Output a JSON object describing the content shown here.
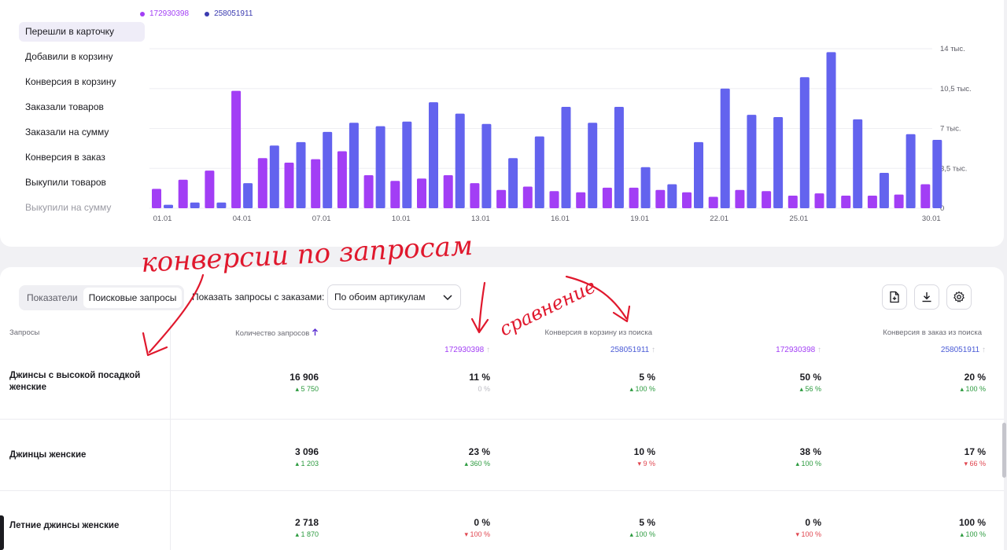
{
  "metrics": [
    {
      "label": "Перешли в карточку",
      "active": true
    },
    {
      "label": "Добавили в корзину"
    },
    {
      "label": "Конверсия в корзину"
    },
    {
      "label": "Заказали товаров"
    },
    {
      "label": "Заказали на сумму"
    },
    {
      "label": "Конверсия в заказ"
    },
    {
      "label": "Выкупили товаров"
    },
    {
      "label": "Выкупили на сумму",
      "faded": true
    }
  ],
  "legend": [
    {
      "label": "172930398",
      "color": "#a23ef5"
    },
    {
      "label": "258051911",
      "color": "#6363ee"
    }
  ],
  "chart_data": {
    "type": "bar",
    "categories": [
      "01.01",
      "02.01",
      "03.01",
      "04.01",
      "05.01",
      "06.01",
      "07.01",
      "08.01",
      "09.01",
      "10.01",
      "11.01",
      "12.01",
      "13.01",
      "14.01",
      "15.01",
      "16.01",
      "17.01",
      "18.01",
      "19.01",
      "20.01",
      "21.01",
      "22.01",
      "23.01",
      "24.01",
      "25.01",
      "26.01",
      "27.01",
      "28.01",
      "29.01",
      "30.01"
    ],
    "tick_labels": [
      "01.01",
      "04.01",
      "07.01",
      "10.01",
      "13.01",
      "16.01",
      "19.01",
      "22.01",
      "25.01",
      "30.01"
    ],
    "series": [
      {
        "name": "172930398",
        "color": "#a23ef5",
        "values": [
          1700,
          2500,
          3300,
          10300,
          4400,
          4000,
          4300,
          5000,
          2900,
          2400,
          2600,
          2900,
          2200,
          1600,
          1900,
          1500,
          1400,
          1800,
          1800,
          1600,
          1400,
          1000,
          1600,
          1500,
          1100,
          1300,
          1100,
          1100,
          1200,
          2100
        ]
      },
      {
        "name": "258051911",
        "color": "#6363ee",
        "values": [
          300,
          500,
          500,
          2200,
          5500,
          5800,
          6700,
          7500,
          7200,
          7600,
          9300,
          8300,
          7400,
          4400,
          6300,
          8900,
          7500,
          8900,
          3600,
          2100,
          5800,
          10500,
          8200,
          8000,
          11500,
          13700,
          7800,
          3100,
          6500,
          6000
        ]
      }
    ],
    "y_ticks": [
      "0",
      "3,5 тыс.",
      "7 тыс.",
      "10,5 тыс.",
      "14 тыс."
    ],
    "ylim": [
      0,
      14000
    ],
    "grid": true,
    "legend_position": "top-left"
  },
  "toolbar": {
    "tabs": [
      "Показатели",
      "Поисковые запросы"
    ],
    "active_tab": 1,
    "filter_label": "Показать запросы с заказами:",
    "select_value": "По обоим артикулам"
  },
  "table": {
    "col_query": "Запросы",
    "col_count": "Количество запросов",
    "col_cart": "Конверсия в корзину из поиска",
    "col_order": "Конверсия в заказ из поиска",
    "sub_headers": [
      {
        "label": "172930398",
        "color": "#a23ef5"
      },
      {
        "label": "258051911",
        "color": "#4a5bd6"
      },
      {
        "label": "172930398",
        "color": "#a23ef5"
      },
      {
        "label": "258051911",
        "color": "#4a5bd6"
      }
    ],
    "rows": [
      {
        "query": "Джинсы с высокой посадкой женские",
        "cells": [
          {
            "v": "16 906",
            "d": "5 750",
            "t": "up"
          },
          {
            "v": "11 %",
            "d": "0 %",
            "t": "neutral"
          },
          {
            "v": "5 %",
            "d": "100 %",
            "t": "up"
          },
          {
            "v": "50 %",
            "d": "56 %",
            "t": "up"
          },
          {
            "v": "20 %",
            "d": "100 %",
            "t": "up"
          }
        ]
      },
      {
        "query": "Джинцы женские",
        "cells": [
          {
            "v": "3 096",
            "d": "1 203",
            "t": "up"
          },
          {
            "v": "23 %",
            "d": "360 %",
            "t": "up"
          },
          {
            "v": "10 %",
            "d": "9 %",
            "t": "down"
          },
          {
            "v": "38 %",
            "d": "100 %",
            "t": "up"
          },
          {
            "v": "17 %",
            "d": "66 %",
            "t": "down"
          }
        ]
      },
      {
        "query": "Летние джинсы женские",
        "cells": [
          {
            "v": "2 718",
            "d": "1 870",
            "t": "up"
          },
          {
            "v": "0 %",
            "d": "100 %",
            "t": "down"
          },
          {
            "v": "5 %",
            "d": "100 %",
            "t": "up"
          },
          {
            "v": "0 %",
            "d": "100 %",
            "t": "down"
          },
          {
            "v": "100 %",
            "d": "100 %",
            "t": "up"
          }
        ]
      }
    ]
  },
  "annotations": {
    "text1": "конверсии по запросам",
    "text2": "сравнение",
    "color": "#e0182d"
  }
}
